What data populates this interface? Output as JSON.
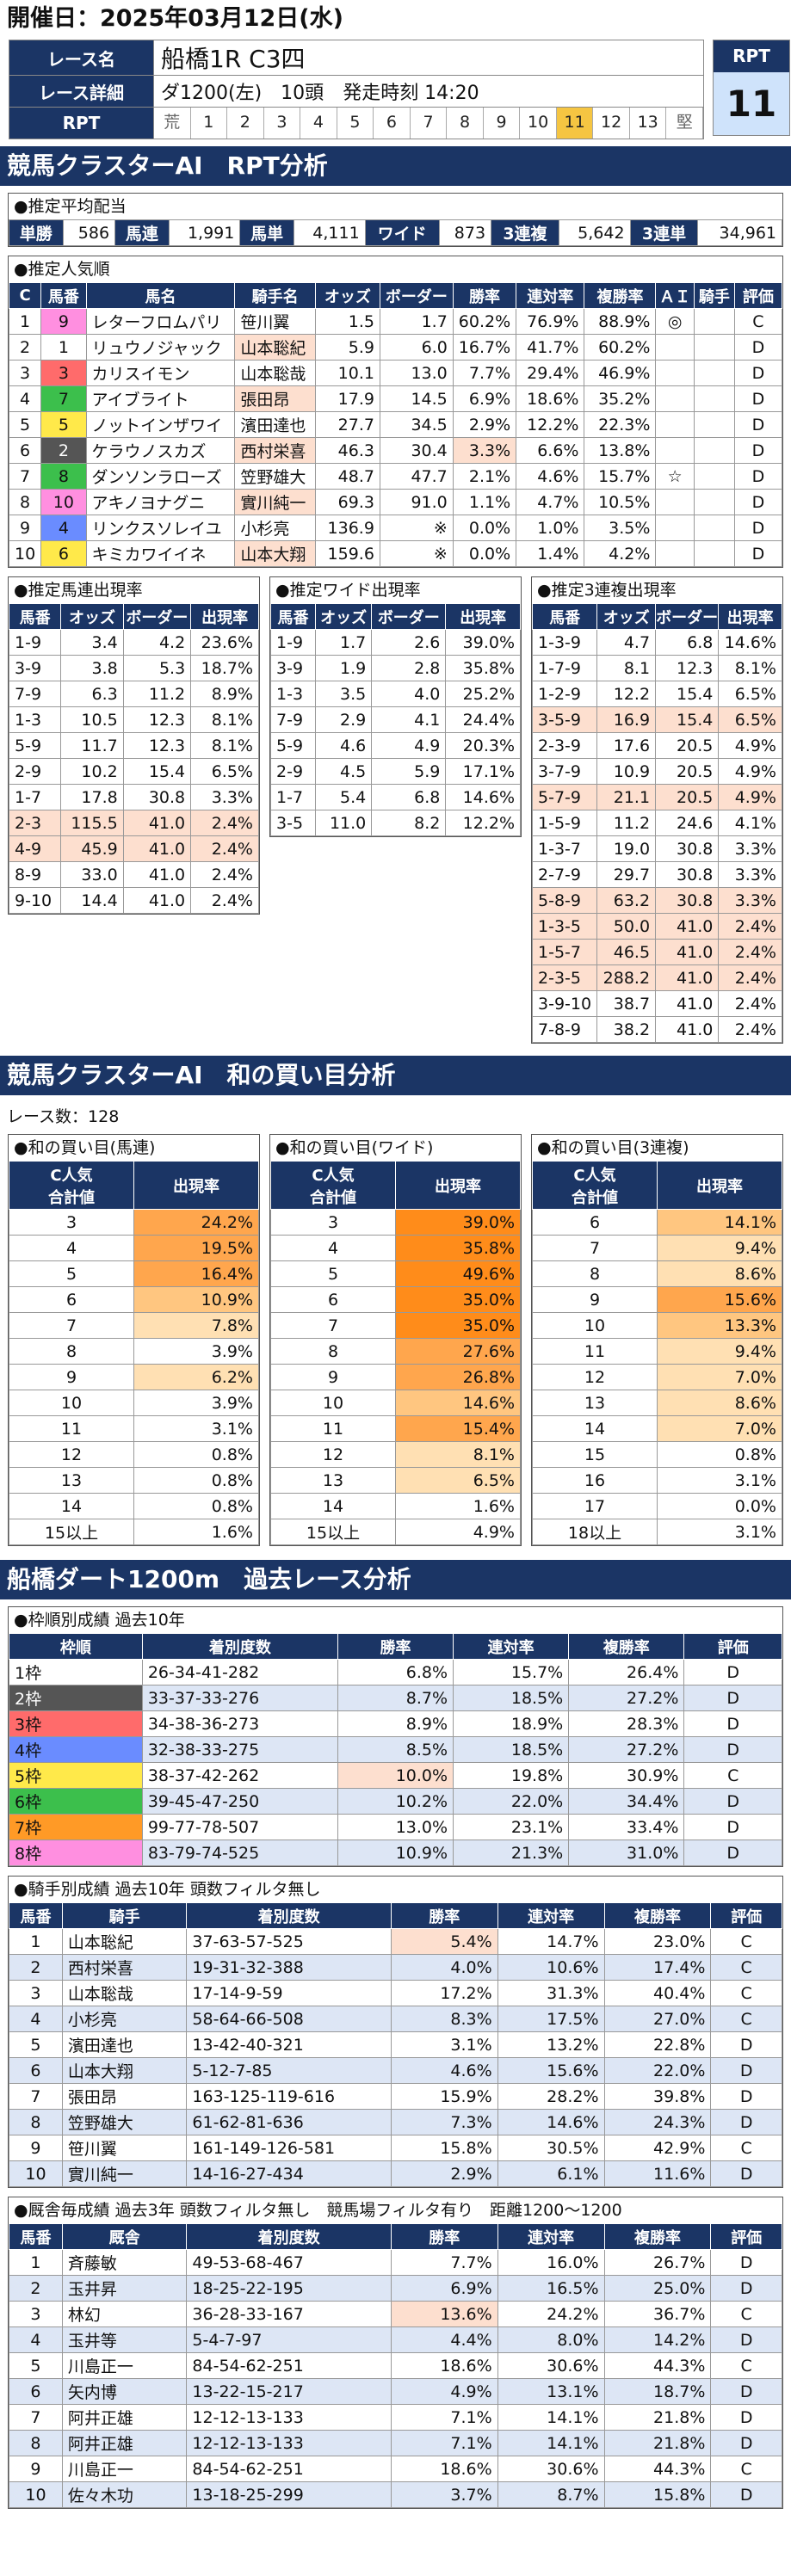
{
  "header": {
    "date": "開催日：2025年03月12日(水)"
  },
  "race": {
    "name_label": "レース名",
    "name": "船橋1R C3四",
    "detail_label": "レース詳細",
    "course": "ダ1200(左)",
    "heads": "10頭",
    "start": "発走時刻 14:20",
    "rpt_label": "RPT",
    "scale": [
      "荒",
      "1",
      "2",
      "3",
      "4",
      "5",
      "6",
      "7",
      "8",
      "9",
      "10",
      "11",
      "12",
      "13",
      "堅"
    ],
    "active": "11",
    "rpt_title": "RPT",
    "rpt_value": "11"
  },
  "sec1": {
    "title": "競馬クラスターAI　RPT分析"
  },
  "payout": {
    "title": "●推定平均配当",
    "items": [
      {
        "k": "単勝",
        "v": "586"
      },
      {
        "k": "馬連",
        "v": "1,991"
      },
      {
        "k": "馬単",
        "v": "4,111"
      },
      {
        "k": "ワイド",
        "v": "873"
      },
      {
        "k": "3連複",
        "v": "5,642"
      },
      {
        "k": "3連単",
        "v": "34,961"
      }
    ]
  },
  "pop": {
    "title": "●推定人気順",
    "headers": [
      "C",
      "馬番",
      "馬名",
      "騎手名",
      "オッズ",
      "ボーダー",
      "勝率",
      "連対率",
      "複勝率",
      "ＡＩ",
      "騎手",
      "評価"
    ],
    "rows": [
      [
        "1",
        "9",
        "レターフロムパリ",
        "笹川翼",
        "1.5",
        "1.7",
        "60.2%",
        "76.9%",
        "88.9%",
        "◎",
        "",
        "C"
      ],
      [
        "2",
        "1",
        "リュウノジャック",
        "山本聡紀",
        "5.9",
        "6.0",
        "16.7%",
        "41.7%",
        "60.2%",
        "",
        "",
        "D"
      ],
      [
        "3",
        "3",
        "カリスイモン",
        "山本聡哉",
        "10.1",
        "13.0",
        "7.7%",
        "29.4%",
        "46.9%",
        "",
        "",
        "D"
      ],
      [
        "4",
        "7",
        "アイブライト",
        "張田昂",
        "17.9",
        "14.5",
        "6.9%",
        "18.6%",
        "35.2%",
        "",
        "",
        "D"
      ],
      [
        "5",
        "5",
        "ノットインザワイ",
        "濱田達也",
        "27.7",
        "34.5",
        "2.9%",
        "12.2%",
        "22.3%",
        "",
        "",
        "D"
      ],
      [
        "6",
        "2",
        "ケラウノスカズ",
        "西村栄喜",
        "46.3",
        "30.4",
        "3.3%",
        "6.6%",
        "13.8%",
        "",
        "",
        "D"
      ],
      [
        "7",
        "8",
        "ダンソンラローズ",
        "笠野雄大",
        "48.7",
        "47.7",
        "2.1%",
        "4.6%",
        "15.7%",
        "☆",
        "",
        "D"
      ],
      [
        "8",
        "10",
        "アキノヨナグニ",
        "實川純一",
        "69.3",
        "91.0",
        "1.1%",
        "4.7%",
        "10.5%",
        "",
        "",
        "D"
      ],
      [
        "9",
        "4",
        "リンクスソレイユ",
        "小杉亮",
        "136.9",
        "※",
        "0.0%",
        "1.0%",
        "3.5%",
        "",
        "",
        "D"
      ],
      [
        "10",
        "6",
        "キミカワイイネ",
        "山本大翔",
        "159.6",
        "※",
        "0.0%",
        "1.4%",
        "4.2%",
        "",
        "",
        "D"
      ]
    ]
  },
  "umaren": {
    "title": "●推定馬連出現率",
    "headers": [
      "馬番",
      "オッズ",
      "ボーダー",
      "出現率"
    ],
    "rows": [
      [
        "1-9",
        "3.4",
        "4.2",
        "23.6%"
      ],
      [
        "3-9",
        "3.8",
        "5.3",
        "18.7%"
      ],
      [
        "7-9",
        "6.3",
        "11.2",
        "8.9%"
      ],
      [
        "1-3",
        "10.5",
        "12.3",
        "8.1%"
      ],
      [
        "5-9",
        "11.7",
        "12.3",
        "8.1%"
      ],
      [
        "2-9",
        "10.2",
        "15.4",
        "6.5%"
      ],
      [
        "1-7",
        "17.8",
        "30.8",
        "3.3%"
      ],
      [
        "2-3",
        "115.5",
        "41.0",
        "2.4%"
      ],
      [
        "4-9",
        "45.9",
        "41.0",
        "2.4%"
      ],
      [
        "8-9",
        "33.0",
        "41.0",
        "2.4%"
      ],
      [
        "9-10",
        "14.4",
        "41.0",
        "2.4%"
      ]
    ]
  },
  "wide": {
    "title": "●推定ワイド出現率",
    "headers": [
      "馬番",
      "オッズ",
      "ボーダー",
      "出現率"
    ],
    "rows": [
      [
        "1-9",
        "1.7",
        "2.6",
        "39.0%"
      ],
      [
        "3-9",
        "1.9",
        "2.8",
        "35.8%"
      ],
      [
        "1-3",
        "3.5",
        "4.0",
        "25.2%"
      ],
      [
        "7-9",
        "2.9",
        "4.1",
        "24.4%"
      ],
      [
        "5-9",
        "4.6",
        "4.9",
        "20.3%"
      ],
      [
        "2-9",
        "4.5",
        "5.9",
        "17.1%"
      ],
      [
        "1-7",
        "5.4",
        "6.8",
        "14.6%"
      ],
      [
        "3-5",
        "11.0",
        "8.2",
        "12.2%"
      ]
    ]
  },
  "trio": {
    "title": "●推定3連複出現率",
    "headers": [
      "馬番",
      "オッズ",
      "ボーダー",
      "出現率"
    ],
    "rows": [
      [
        "1-3-9",
        "4.7",
        "6.8",
        "14.6%"
      ],
      [
        "1-7-9",
        "8.1",
        "12.3",
        "8.1%"
      ],
      [
        "1-2-9",
        "12.2",
        "15.4",
        "6.5%"
      ],
      [
        "3-5-9",
        "16.9",
        "15.4",
        "6.5%"
      ],
      [
        "2-3-9",
        "17.6",
        "20.5",
        "4.9%"
      ],
      [
        "3-7-9",
        "10.9",
        "20.5",
        "4.9%"
      ],
      [
        "5-7-9",
        "21.1",
        "20.5",
        "4.9%"
      ],
      [
        "1-5-9",
        "11.2",
        "24.6",
        "4.1%"
      ],
      [
        "1-3-7",
        "19.0",
        "30.8",
        "3.3%"
      ],
      [
        "2-7-9",
        "29.7",
        "30.8",
        "3.3%"
      ],
      [
        "5-8-9",
        "63.2",
        "30.8",
        "3.3%"
      ],
      [
        "1-3-5",
        "50.0",
        "41.0",
        "2.4%"
      ],
      [
        "1-5-7",
        "46.5",
        "41.0",
        "2.4%"
      ],
      [
        "2-3-5",
        "288.2",
        "41.0",
        "2.4%"
      ],
      [
        "3-9-10",
        "38.7",
        "41.0",
        "2.4%"
      ],
      [
        "7-8-9",
        "38.2",
        "41.0",
        "2.4%"
      ]
    ]
  },
  "sec2": {
    "title": "競馬クラスターAI　和の買い目分析",
    "count": "レース数：128"
  },
  "sum_umaren": {
    "title": "●和の買い目(馬連)",
    "h1": "C人気\n合計値",
    "h2": "出現率",
    "rows": [
      [
        "3",
        "24.2%"
      ],
      [
        "4",
        "19.5%"
      ],
      [
        "5",
        "16.4%"
      ],
      [
        "6",
        "10.9%"
      ],
      [
        "7",
        "7.8%"
      ],
      [
        "8",
        "3.9%"
      ],
      [
        "9",
        "6.2%"
      ],
      [
        "10",
        "3.9%"
      ],
      [
        "11",
        "3.1%"
      ],
      [
        "12",
        "0.8%"
      ],
      [
        "13",
        "0.8%"
      ],
      [
        "14",
        "0.8%"
      ],
      [
        "15以上",
        "1.6%"
      ]
    ]
  },
  "sum_wide": {
    "title": "●和の買い目(ワイド)",
    "h1": "C人気\n合計値",
    "h2": "出現率",
    "rows": [
      [
        "3",
        "39.0%"
      ],
      [
        "4",
        "35.8%"
      ],
      [
        "5",
        "49.6%"
      ],
      [
        "6",
        "35.0%"
      ],
      [
        "7",
        "35.0%"
      ],
      [
        "8",
        "27.6%"
      ],
      [
        "9",
        "26.8%"
      ],
      [
        "10",
        "14.6%"
      ],
      [
        "11",
        "15.4%"
      ],
      [
        "12",
        "8.1%"
      ],
      [
        "13",
        "6.5%"
      ],
      [
        "14",
        "1.6%"
      ],
      [
        "15以上",
        "4.9%"
      ]
    ]
  },
  "sum_trio": {
    "title": "●和の買い目(3連複)",
    "h1": "C人気\n合計値",
    "h2": "出現率",
    "rows": [
      [
        "6",
        "14.1%"
      ],
      [
        "7",
        "9.4%"
      ],
      [
        "8",
        "8.6%"
      ],
      [
        "9",
        "15.6%"
      ],
      [
        "10",
        "13.3%"
      ],
      [
        "11",
        "9.4%"
      ],
      [
        "12",
        "7.0%"
      ],
      [
        "13",
        "8.6%"
      ],
      [
        "14",
        "7.0%"
      ],
      [
        "15",
        "0.8%"
      ],
      [
        "16",
        "3.1%"
      ],
      [
        "17",
        "0.0%"
      ],
      [
        "18以上",
        "3.1%"
      ]
    ]
  },
  "sec3": {
    "title": "船橋ダート1200m　過去レース分析"
  },
  "waku": {
    "title": "●枠順別成績 過去10年",
    "headers": [
      "枠順",
      "着別度数",
      "勝率",
      "連対率",
      "複勝率",
      "評価"
    ],
    "rows": [
      [
        "1枠",
        "26-34-41-282",
        "6.8%",
        "15.7%",
        "26.4%",
        "D"
      ],
      [
        "2枠",
        "33-37-33-276",
        "8.7%",
        "18.5%",
        "27.2%",
        "D"
      ],
      [
        "3枠",
        "34-38-36-273",
        "8.9%",
        "18.9%",
        "28.3%",
        "D"
      ],
      [
        "4枠",
        "32-38-33-275",
        "8.5%",
        "18.5%",
        "27.2%",
        "D"
      ],
      [
        "5枠",
        "38-37-42-262",
        "10.0%",
        "19.8%",
        "30.9%",
        "C"
      ],
      [
        "6枠",
        "39-45-47-250",
        "10.2%",
        "22.0%",
        "34.4%",
        "D"
      ],
      [
        "7枠",
        "99-77-78-507",
        "13.0%",
        "23.1%",
        "33.4%",
        "D"
      ],
      [
        "8枠",
        "83-79-74-525",
        "10.9%",
        "21.3%",
        "31.0%",
        "D"
      ]
    ]
  },
  "jockey": {
    "title": "●騎手別成績 過去10年 頭数フィルタ無し",
    "headers": [
      "馬番",
      "騎手",
      "着別度数",
      "勝率",
      "連対率",
      "複勝率",
      "評価"
    ],
    "rows": [
      [
        "1",
        "山本聡紀",
        "37-63-57-525",
        "5.4%",
        "14.7%",
        "23.0%",
        "C"
      ],
      [
        "2",
        "西村栄喜",
        "19-31-32-388",
        "4.0%",
        "10.6%",
        "17.4%",
        "C"
      ],
      [
        "3",
        "山本聡哉",
        "17-14-9-59",
        "17.2%",
        "31.3%",
        "40.4%",
        "C"
      ],
      [
        "4",
        "小杉亮",
        "58-64-66-508",
        "8.3%",
        "17.5%",
        "27.0%",
        "C"
      ],
      [
        "5",
        "濱田達也",
        "13-42-40-321",
        "3.1%",
        "13.2%",
        "22.8%",
        "D"
      ],
      [
        "6",
        "山本大翔",
        "5-12-7-85",
        "4.6%",
        "15.6%",
        "22.0%",
        "D"
      ],
      [
        "7",
        "張田昂",
        "163-125-119-616",
        "15.9%",
        "28.2%",
        "39.8%",
        "D"
      ],
      [
        "8",
        "笠野雄大",
        "61-62-81-636",
        "7.3%",
        "14.6%",
        "24.3%",
        "D"
      ],
      [
        "9",
        "笹川翼",
        "161-149-126-581",
        "15.8%",
        "30.5%",
        "42.9%",
        "C"
      ],
      [
        "10",
        "實川純一",
        "14-16-27-434",
        "2.9%",
        "6.1%",
        "11.6%",
        "D"
      ]
    ]
  },
  "trainer": {
    "title": "●厩舎毎成績 過去3年 頭数フィルタ無し　競馬場フィルタ有り　距離1200～1200",
    "headers": [
      "馬番",
      "厩舎",
      "着別度数",
      "勝率",
      "連対率",
      "複勝率",
      "評価"
    ],
    "rows": [
      [
        "1",
        "斉藤敏",
        "49-53-68-467",
        "7.7%",
        "16.0%",
        "26.7%",
        "D"
      ],
      [
        "2",
        "玉井昇",
        "18-25-22-195",
        "6.9%",
        "16.5%",
        "25.0%",
        "D"
      ],
      [
        "3",
        "林幻",
        "36-28-33-167",
        "13.6%",
        "24.2%",
        "36.7%",
        "C"
      ],
      [
        "4",
        "玉井等",
        "5-4-7-97",
        "4.4%",
        "8.0%",
        "14.2%",
        "D"
      ],
      [
        "5",
        "川島正一",
        "84-54-62-251",
        "18.6%",
        "30.6%",
        "44.3%",
        "C"
      ],
      [
        "6",
        "矢内博",
        "13-22-15-217",
        "4.9%",
        "13.1%",
        "18.7%",
        "D"
      ],
      [
        "7",
        "阿井正雄",
        "12-12-13-133",
        "7.1%",
        "14.1%",
        "21.8%",
        "D"
      ],
      [
        "8",
        "阿井正雄",
        "12-12-13-133",
        "7.1%",
        "14.1%",
        "21.8%",
        "D"
      ],
      [
        "9",
        "川島正一",
        "84-54-62-251",
        "18.6%",
        "30.6%",
        "44.3%",
        "C"
      ],
      [
        "10",
        "佐々木功",
        "13-18-25-299",
        "3.7%",
        "8.7%",
        "15.8%",
        "D"
      ]
    ]
  }
}
